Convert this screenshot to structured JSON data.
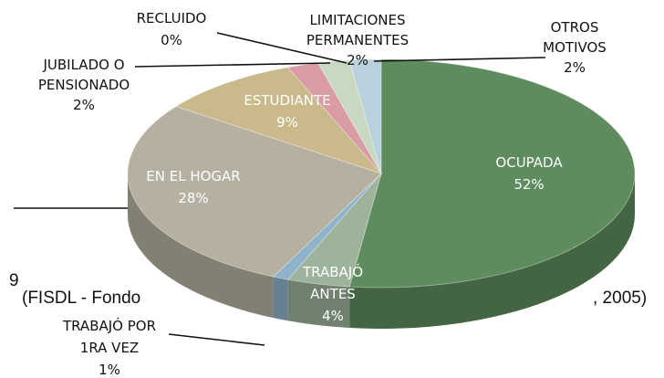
{
  "chart_data": {
    "type": "pie",
    "categories": [
      "OCUPADA",
      "TRABAJÓ\nANTES",
      "TRABAJÓ POR\n1RA VEZ",
      "EN EL HOGAR",
      "ESTUDIANTE",
      "JUBILADO O\nPENSIONADO",
      "RECLUIDO",
      "LIMITACIONES\nPERMANENTES",
      "OTROS\nMOTIVOS"
    ],
    "values": [
      52,
      4,
      1,
      28,
      9,
      2,
      0,
      2,
      2
    ],
    "value_labels": [
      "52%",
      "4%",
      "1%",
      "28%",
      "9%",
      "2%",
      "0%",
      "2%",
      "2%"
    ],
    "colors": [
      "#5f8c5f",
      "#9db39b",
      "#8fb3cb",
      "#b5b0a0",
      "#c9b98b",
      "#d99ca3",
      "#c8c8c8",
      "#c9d9c1",
      "#b9d1dd"
    ],
    "annotations": [
      "9",
      "(FISDL - Fondo",
      ", 2005)"
    ]
  }
}
